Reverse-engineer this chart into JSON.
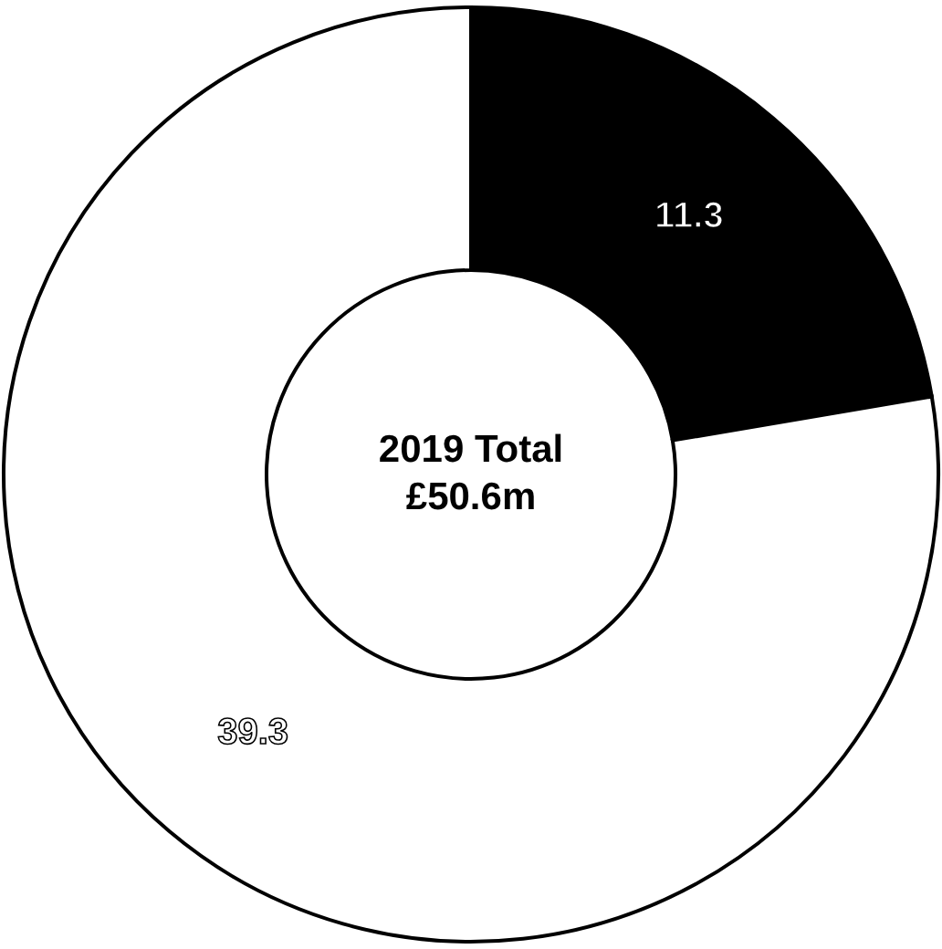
{
  "chart_data": {
    "type": "donut",
    "categories": [
      null,
      null
    ],
    "values": [
      11.3,
      39.3
    ],
    "colors": [
      "#000000",
      "#ffffff"
    ],
    "data_labels": true,
    "annotations": [
      "2019 Total",
      "£50.6m"
    ]
  }
}
